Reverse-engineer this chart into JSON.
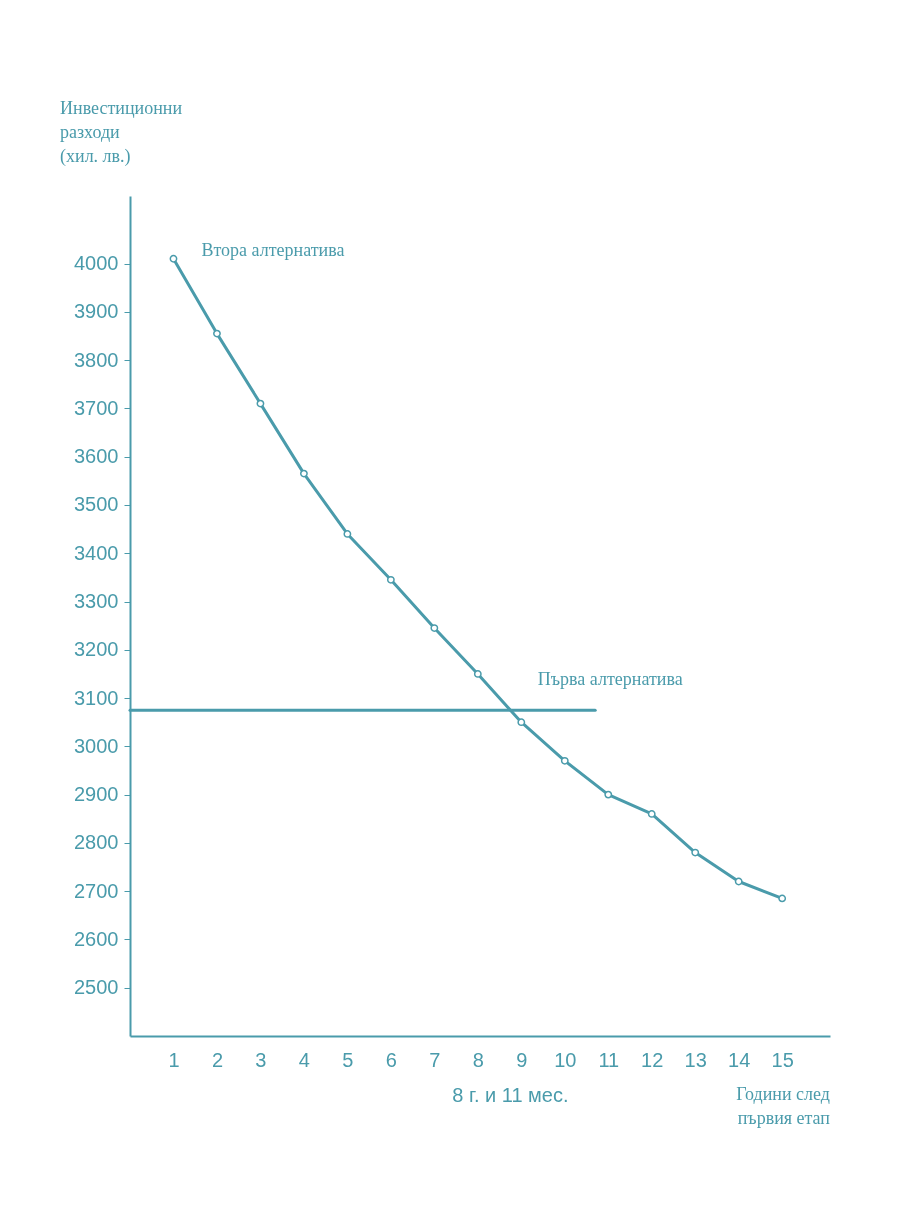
{
  "chart_data": {
    "type": "line",
    "ylabel": "Инвестиционни разходи (хил. лв.)",
    "xlabel": "Години след първия етап",
    "xlim": [
      0,
      16.1
    ],
    "ylim": [
      2400,
      4140
    ],
    "xticks": [
      1,
      2,
      3,
      4,
      5,
      6,
      7,
      8,
      9,
      10,
      11,
      12,
      13,
      14,
      15
    ],
    "annotations": [
      "8 г.  и 11 мес."
    ],
    "yticks": [
      2500,
      2600,
      2700,
      2800,
      2900,
      3000,
      3100,
      3200,
      3300,
      3400,
      3500,
      3600,
      3700,
      3800,
      3900,
      4000
    ],
    "series": [
      {
        "name": "Втора алтернатива",
        "color": "#4a9bab",
        "marker": "circle",
        "x": [
          1,
          2,
          3,
          4,
          5,
          6,
          7,
          8,
          9,
          10,
          11,
          12,
          13,
          14,
          15
        ],
        "values": [
          4010,
          3855,
          3710,
          3565,
          3440,
          3345,
          3245,
          3150,
          3050,
          2970,
          2900,
          2860,
          2780,
          2720,
          2685
        ]
      },
      {
        "name": "Първа алтернатива",
        "color": "#4a9bab",
        "marker": "none",
        "x": [
          0,
          10.7
        ],
        "values": [
          3075,
          3075
        ]
      }
    ],
    "legend": false,
    "grid": false
  }
}
